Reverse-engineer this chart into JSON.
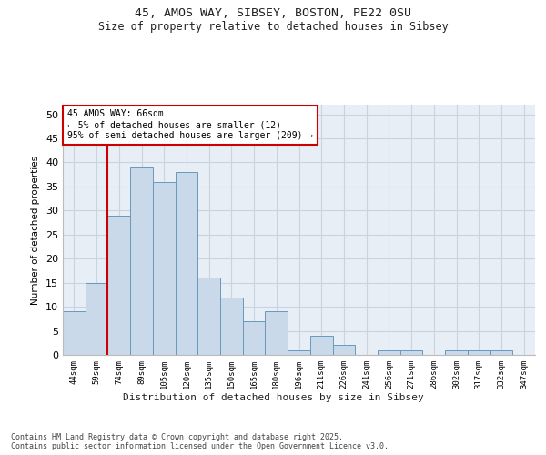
{
  "title_line1": "45, AMOS WAY, SIBSEY, BOSTON, PE22 0SU",
  "title_line2": "Size of property relative to detached houses in Sibsey",
  "xlabel": "Distribution of detached houses by size in Sibsey",
  "ylabel": "Number of detached properties",
  "categories": [
    "44sqm",
    "59sqm",
    "74sqm",
    "89sqm",
    "105sqm",
    "120sqm",
    "135sqm",
    "150sqm",
    "165sqm",
    "180sqm",
    "196sqm",
    "211sqm",
    "226sqm",
    "241sqm",
    "256sqm",
    "271sqm",
    "286sqm",
    "302sqm",
    "317sqm",
    "332sqm",
    "347sqm"
  ],
  "values": [
    9,
    15,
    29,
    39,
    36,
    38,
    16,
    12,
    7,
    9,
    1,
    4,
    2,
    0,
    1,
    1,
    0,
    1,
    1,
    1,
    0
  ],
  "bar_color": "#c9d9ea",
  "bar_edge_color": "#6699bb",
  "grid_color": "#c8d4e0",
  "background_color": "#e8eef5",
  "vline_color": "#cc0000",
  "annotation_text": "45 AMOS WAY: 66sqm\n← 5% of detached houses are smaller (12)\n95% of semi-detached houses are larger (209) →",
  "annotation_box_color": "#cc0000",
  "footer_text": "Contains HM Land Registry data © Crown copyright and database right 2025.\nContains public sector information licensed under the Open Government Licence v3.0.",
  "ylim": [
    0,
    52
  ],
  "yticks": [
    0,
    5,
    10,
    15,
    20,
    25,
    30,
    35,
    40,
    45,
    50
  ],
  "vline_pos": 1.5
}
